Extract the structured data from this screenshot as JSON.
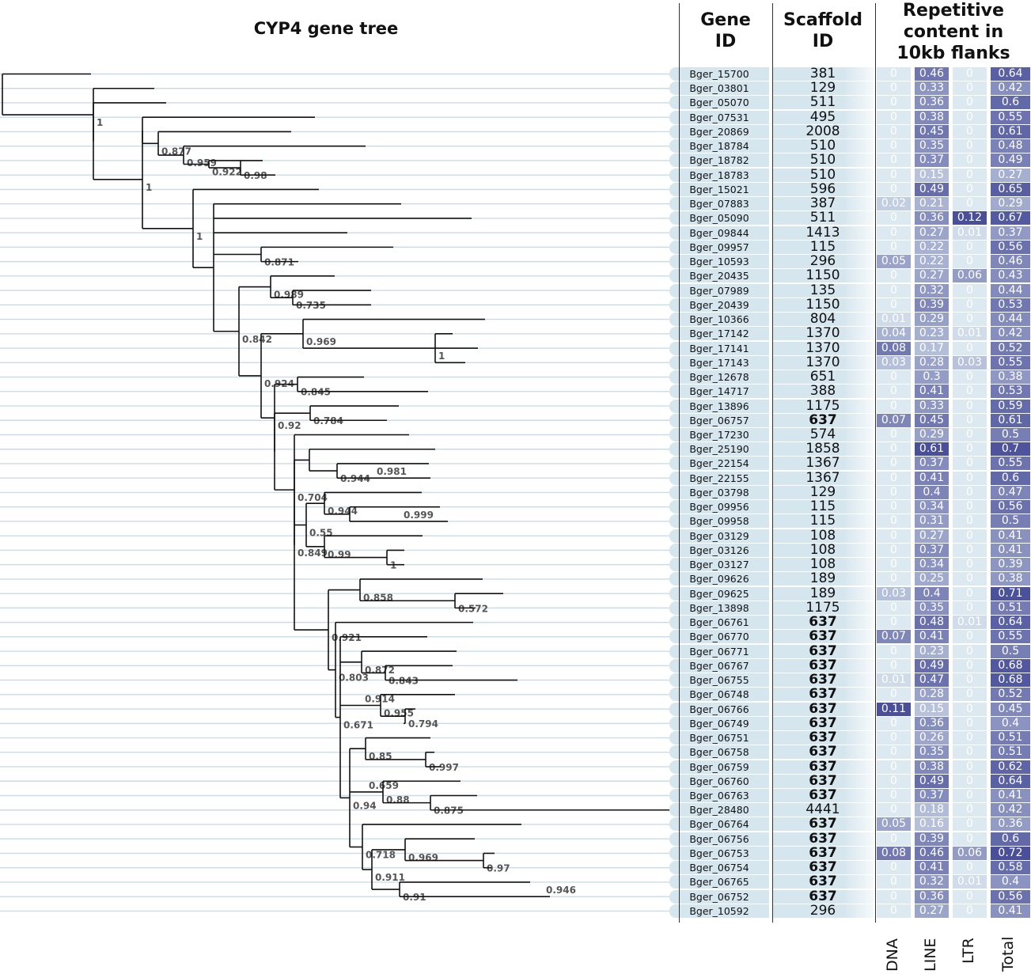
{
  "tree_title": "CYP4 gene tree",
  "headers": {
    "gene": [
      "Gene",
      "ID"
    ],
    "scaffold": [
      "Scaffold",
      "ID"
    ],
    "repetitive": [
      "Repetitive",
      "content in",
      "10kb flanks"
    ]
  },
  "columns": [
    "DNA",
    "LINE",
    "LTR",
    "Total"
  ],
  "colors": {
    "low": "#dce9f0",
    "high": "#4a4f9a",
    "branch": "#111111",
    "guide": "#c9dce6"
  },
  "rows": [
    {
      "gene": "Bger_15700",
      "scaffold": "381",
      "bold": false,
      "dna": "0",
      "line": "0.46",
      "ltr": "0",
      "total": "0.64"
    },
    {
      "gene": "Bger_03801",
      "scaffold": "129",
      "bold": false,
      "dna": "0",
      "line": "0.33",
      "ltr": "0",
      "total": "0.42"
    },
    {
      "gene": "Bger_05070",
      "scaffold": "511",
      "bold": false,
      "dna": "0",
      "line": "0.36",
      "ltr": "0",
      "total": "0.6"
    },
    {
      "gene": "Bger_07531",
      "scaffold": "495",
      "bold": false,
      "dna": "0",
      "line": "0.38",
      "ltr": "0",
      "total": "0.55"
    },
    {
      "gene": "Bger_20869",
      "scaffold": "2008",
      "bold": false,
      "dna": "0",
      "line": "0.45",
      "ltr": "0",
      "total": "0.61"
    },
    {
      "gene": "Bger_18784",
      "scaffold": "510",
      "bold": false,
      "dna": "0",
      "line": "0.35",
      "ltr": "0",
      "total": "0.48"
    },
    {
      "gene": "Bger_18782",
      "scaffold": "510",
      "bold": false,
      "dna": "0",
      "line": "0.37",
      "ltr": "0",
      "total": "0.49"
    },
    {
      "gene": "Bger_18783",
      "scaffold": "510",
      "bold": false,
      "dna": "0",
      "line": "0.15",
      "ltr": "0",
      "total": "0.27"
    },
    {
      "gene": "Bger_15021",
      "scaffold": "596",
      "bold": false,
      "dna": "0",
      "line": "0.49",
      "ltr": "0",
      "total": "0.65"
    },
    {
      "gene": "Bger_07883",
      "scaffold": "387",
      "bold": false,
      "dna": "0.02",
      "line": "0.21",
      "ltr": "0",
      "total": "0.29"
    },
    {
      "gene": "Bger_05090",
      "scaffold": "511",
      "bold": false,
      "dna": "0",
      "line": "0.36",
      "ltr": "0.12",
      "total": "0.67"
    },
    {
      "gene": "Bger_09844",
      "scaffold": "1413",
      "bold": false,
      "dna": "0",
      "line": "0.27",
      "ltr": "0.01",
      "total": "0.37"
    },
    {
      "gene": "Bger_09957",
      "scaffold": "115",
      "bold": false,
      "dna": "0",
      "line": "0.22",
      "ltr": "0",
      "total": "0.56"
    },
    {
      "gene": "Bger_10593",
      "scaffold": "296",
      "bold": false,
      "dna": "0.05",
      "line": "0.22",
      "ltr": "0",
      "total": "0.46"
    },
    {
      "gene": "Bger_20435",
      "scaffold": "1150",
      "bold": false,
      "dna": "0",
      "line": "0.27",
      "ltr": "0.06",
      "total": "0.43"
    },
    {
      "gene": "Bger_07989",
      "scaffold": "135",
      "bold": false,
      "dna": "0",
      "line": "0.32",
      "ltr": "0",
      "total": "0.44"
    },
    {
      "gene": "Bger_20439",
      "scaffold": "1150",
      "bold": false,
      "dna": "0",
      "line": "0.39",
      "ltr": "0",
      "total": "0.53"
    },
    {
      "gene": "Bger_10366",
      "scaffold": "804",
      "bold": false,
      "dna": "0.01",
      "line": "0.29",
      "ltr": "0",
      "total": "0.44"
    },
    {
      "gene": "Bger_17142",
      "scaffold": "1370",
      "bold": false,
      "dna": "0.04",
      "line": "0.23",
      "ltr": "0.01",
      "total": "0.42"
    },
    {
      "gene": "Bger_17141",
      "scaffold": "1370",
      "bold": false,
      "dna": "0.08",
      "line": "0.17",
      "ltr": "0",
      "total": "0.52"
    },
    {
      "gene": "Bger_17143",
      "scaffold": "1370",
      "bold": false,
      "dna": "0.03",
      "line": "0.28",
      "ltr": "0.03",
      "total": "0.55"
    },
    {
      "gene": "Bger_12678",
      "scaffold": "651",
      "bold": false,
      "dna": "0",
      "line": "0.3",
      "ltr": "0",
      "total": "0.38"
    },
    {
      "gene": "Bger_14717",
      "scaffold": "388",
      "bold": false,
      "dna": "0",
      "line": "0.41",
      "ltr": "0",
      "total": "0.53"
    },
    {
      "gene": "Bger_13896",
      "scaffold": "1175",
      "bold": false,
      "dna": "0",
      "line": "0.33",
      "ltr": "0",
      "total": "0.59"
    },
    {
      "gene": "Bger_06757",
      "scaffold": "637",
      "bold": true,
      "dna": "0.07",
      "line": "0.45",
      "ltr": "0",
      "total": "0.61"
    },
    {
      "gene": "Bger_17230",
      "scaffold": "574",
      "bold": false,
      "dna": "0",
      "line": "0.29",
      "ltr": "0",
      "total": "0.5"
    },
    {
      "gene": "Bger_25190",
      "scaffold": "1858",
      "bold": false,
      "dna": "0",
      "line": "0.61",
      "ltr": "0",
      "total": "0.7"
    },
    {
      "gene": "Bger_22154",
      "scaffold": "1367",
      "bold": false,
      "dna": "0",
      "line": "0.37",
      "ltr": "0",
      "total": "0.55"
    },
    {
      "gene": "Bger_22155",
      "scaffold": "1367",
      "bold": false,
      "dna": "0",
      "line": "0.41",
      "ltr": "0",
      "total": "0.6"
    },
    {
      "gene": "Bger_03798",
      "scaffold": "129",
      "bold": false,
      "dna": "0",
      "line": "0.4",
      "ltr": "0",
      "total": "0.47"
    },
    {
      "gene": "Bger_09956",
      "scaffold": "115",
      "bold": false,
      "dna": "0",
      "line": "0.34",
      "ltr": "0",
      "total": "0.56"
    },
    {
      "gene": "Bger_09958",
      "scaffold": "115",
      "bold": false,
      "dna": "0",
      "line": "0.31",
      "ltr": "0",
      "total": "0.5"
    },
    {
      "gene": "Bger_03129",
      "scaffold": "108",
      "bold": false,
      "dna": "0",
      "line": "0.27",
      "ltr": "0",
      "total": "0.41"
    },
    {
      "gene": "Bger_03126",
      "scaffold": "108",
      "bold": false,
      "dna": "0",
      "line": "0.37",
      "ltr": "0",
      "total": "0.41"
    },
    {
      "gene": "Bger_03127",
      "scaffold": "108",
      "bold": false,
      "dna": "0",
      "line": "0.34",
      "ltr": "0",
      "total": "0.39"
    },
    {
      "gene": "Bger_09626",
      "scaffold": "189",
      "bold": false,
      "dna": "0",
      "line": "0.25",
      "ltr": "0",
      "total": "0.38"
    },
    {
      "gene": "Bger_09625",
      "scaffold": "189",
      "bold": false,
      "dna": "0.03",
      "line": "0.4",
      "ltr": "0",
      "total": "0.71"
    },
    {
      "gene": "Bger_13898",
      "scaffold": "1175",
      "bold": false,
      "dna": "0",
      "line": "0.35",
      "ltr": "0",
      "total": "0.51"
    },
    {
      "gene": "Bger_06761",
      "scaffold": "637",
      "bold": true,
      "dna": "0",
      "line": "0.48",
      "ltr": "0.01",
      "total": "0.64"
    },
    {
      "gene": "Bger_06770",
      "scaffold": "637",
      "bold": true,
      "dna": "0.07",
      "line": "0.41",
      "ltr": "0",
      "total": "0.55"
    },
    {
      "gene": "Bger_06771",
      "scaffold": "637",
      "bold": true,
      "dna": "0",
      "line": "0.23",
      "ltr": "0",
      "total": "0.5"
    },
    {
      "gene": "Bger_06767",
      "scaffold": "637",
      "bold": true,
      "dna": "0",
      "line": "0.49",
      "ltr": "0",
      "total": "0.68"
    },
    {
      "gene": "Bger_06755",
      "scaffold": "637",
      "bold": true,
      "dna": "0.01",
      "line": "0.47",
      "ltr": "0",
      "total": "0.68"
    },
    {
      "gene": "Bger_06748",
      "scaffold": "637",
      "bold": true,
      "dna": "0",
      "line": "0.28",
      "ltr": "0",
      "total": "0.52"
    },
    {
      "gene": "Bger_06766",
      "scaffold": "637",
      "bold": true,
      "dna": "0.11",
      "line": "0.15",
      "ltr": "0",
      "total": "0.45"
    },
    {
      "gene": "Bger_06749",
      "scaffold": "637",
      "bold": true,
      "dna": "0",
      "line": "0.36",
      "ltr": "0",
      "total": "0.4"
    },
    {
      "gene": "Bger_06751",
      "scaffold": "637",
      "bold": true,
      "dna": "0",
      "line": "0.26",
      "ltr": "0",
      "total": "0.51"
    },
    {
      "gene": "Bger_06758",
      "scaffold": "637",
      "bold": true,
      "dna": "0",
      "line": "0.35",
      "ltr": "0",
      "total": "0.51"
    },
    {
      "gene": "Bger_06759",
      "scaffold": "637",
      "bold": true,
      "dna": "0",
      "line": "0.38",
      "ltr": "0",
      "total": "0.62"
    },
    {
      "gene": "Bger_06760",
      "scaffold": "637",
      "bold": true,
      "dna": "0",
      "line": "0.49",
      "ltr": "0",
      "total": "0.64"
    },
    {
      "gene": "Bger_06763",
      "scaffold": "637",
      "bold": true,
      "dna": "0",
      "line": "0.37",
      "ltr": "0",
      "total": "0.41"
    },
    {
      "gene": "Bger_28480",
      "scaffold": "4441",
      "bold": false,
      "dna": "0",
      "line": "0.18",
      "ltr": "0",
      "total": "0.42"
    },
    {
      "gene": "Bger_06764",
      "scaffold": "637",
      "bold": true,
      "dna": "0.05",
      "line": "0.16",
      "ltr": "0",
      "total": "0.36"
    },
    {
      "gene": "Bger_06756",
      "scaffold": "637",
      "bold": true,
      "dna": "0",
      "line": "0.39",
      "ltr": "0",
      "total": "0.6"
    },
    {
      "gene": "Bger_06753",
      "scaffold": "637",
      "bold": true,
      "dna": "0.08",
      "line": "0.46",
      "ltr": "0.06",
      "total": "0.72"
    },
    {
      "gene": "Bger_06754",
      "scaffold": "637",
      "bold": true,
      "dna": "0",
      "line": "0.41",
      "ltr": "0",
      "total": "0.58"
    },
    {
      "gene": "Bger_06765",
      "scaffold": "637",
      "bold": true,
      "dna": "0",
      "line": "0.32",
      "ltr": "0.01",
      "total": "0.4"
    },
    {
      "gene": "Bger_06752",
      "scaffold": "637",
      "bold": true,
      "dna": "0",
      "line": "0.36",
      "ltr": "0",
      "total": "0.56"
    },
    {
      "gene": "Bger_10592",
      "scaffold": "296",
      "bold": false,
      "dna": "0",
      "line": "0.27",
      "ltr": "0",
      "total": "0.41"
    }
  ],
  "support_values": [
    "1",
    "1",
    "0.877",
    "0.959",
    "0.922",
    "0.98",
    "1",
    "0.871",
    "0.842",
    "0.989",
    "0.735",
    "0.924",
    "0.969",
    "1",
    "0.92",
    "0.845",
    "0.784",
    "0.704",
    "0.944",
    "0.981",
    "0.849",
    "0.944",
    "0.999",
    "0.55",
    "0.99",
    "1",
    "0.858",
    "0.572",
    "0.921",
    "0.872",
    "0.843",
    "0.803",
    "0.914",
    "0.955",
    "0.794",
    "0.671",
    "0.85",
    "0.997",
    "0.659",
    "0.88",
    "0.875",
    "0.94",
    "0.718",
    "0.969",
    "0.97",
    "0.911",
    "0.91",
    "0.946"
  ]
}
